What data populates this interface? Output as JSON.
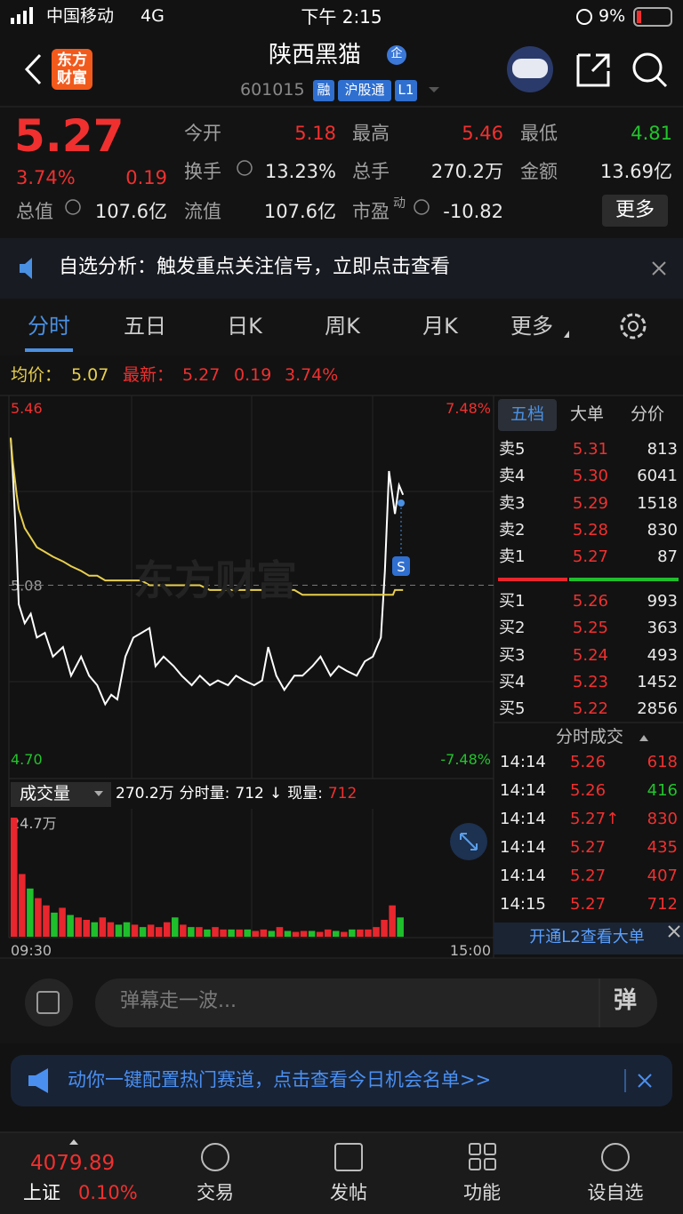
{
  "status": {
    "carrier": "中国移动",
    "network": "4G",
    "time": "下午 2:15",
    "battery": "9%"
  },
  "header": {
    "logo": "东方财富",
    "title": "陕西黑猫",
    "badge": "企",
    "code": "601015",
    "tags": [
      "融",
      "沪股通",
      "L1"
    ]
  },
  "quote": {
    "price": "5.27",
    "change_pct": "3.74%",
    "change": "0.19",
    "fields": [
      {
        "label": "今开",
        "value": "5.18"
      },
      {
        "label": "最高",
        "value": "5.46"
      },
      {
        "label": "最低",
        "value": "4.81"
      },
      {
        "label": "换手",
        "value": "13.23%"
      },
      {
        "label": "总手",
        "value": "270.2万"
      },
      {
        "label": "金额",
        "value": "13.69亿"
      },
      {
        "label": "总值",
        "value": "107.6亿"
      },
      {
        "label": "流值",
        "value": "107.6亿"
      },
      {
        "label": "市盈",
        "sup": "动",
        "value": "-10.82"
      }
    ],
    "more": "更多"
  },
  "notice": {
    "text": "自选分析：触发重点关注信号，立即点击查看"
  },
  "tabs": [
    "分时",
    "五日",
    "日K",
    "周K",
    "月K",
    "更多"
  ],
  "summary": {
    "avg_label": "均价：",
    "avg": "5.07",
    "latest_label": "最新：",
    "latest": "5.27",
    "change": "0.19",
    "pct": "3.74%"
  },
  "watermark": "东方财富",
  "chart_data": [
    {
      "type": "line",
      "xlim": [
        0,
        240
      ],
      "x": [
        0,
        1,
        3,
        4,
        7,
        10,
        13,
        17,
        21,
        26,
        30,
        35,
        39,
        43,
        47,
        50,
        53,
        57,
        61,
        65,
        69,
        72,
        76,
        81,
        85,
        90,
        94,
        99,
        103,
        108,
        112,
        116,
        121,
        125,
        128,
        132,
        136,
        141,
        145,
        150,
        154,
        159,
        163,
        167,
        172,
        176,
        180,
        184,
        186,
        188,
        190,
        191,
        193,
        195
      ],
      "series": [
        {
          "color": "#ffffff",
          "values": [
            5.39,
            5.32,
            5.15,
            5.04,
            5.0,
            5.02,
            4.97,
            4.98,
            4.93,
            4.95,
            4.89,
            4.93,
            4.89,
            4.87,
            4.83,
            4.85,
            4.84,
            4.93,
            4.97,
            4.98,
            4.99,
            4.91,
            4.93,
            4.91,
            4.89,
            4.87,
            4.89,
            4.87,
            4.88,
            4.87,
            4.89,
            4.88,
            4.87,
            4.88,
            4.95,
            4.89,
            4.86,
            4.89,
            4.89,
            4.91,
            4.93,
            4.89,
            4.91,
            4.9,
            4.89,
            4.92,
            4.93,
            4.97,
            5.11,
            5.32,
            5.26,
            5.23,
            5.29,
            5.27
          ]
        },
        {
          "color": "#e8cf4e",
          "values": [
            5.39,
            5.34,
            5.27,
            5.24,
            5.2,
            5.18,
            5.16,
            5.15,
            5.14,
            5.13,
            5.12,
            5.11,
            5.1,
            5.1,
            5.09,
            5.09,
            5.09,
            5.09,
            5.09,
            5.09,
            5.08,
            5.08,
            5.08,
            5.08,
            5.08,
            5.08,
            5.08,
            5.07,
            5.07,
            5.07,
            5.07,
            5.07,
            5.07,
            5.07,
            5.07,
            5.07,
            5.07,
            5.07,
            5.06,
            5.06,
            5.06,
            5.06,
            5.06,
            5.06,
            5.06,
            5.06,
            5.06,
            5.06,
            5.06,
            5.06,
            5.06,
            5.07,
            5.07,
            5.07
          ]
        }
      ],
      "ylim": [
        4.7,
        5.46
      ],
      "yticks": [
        5.46,
        5.08,
        {
          "value": 4.7,
          "label": "4.70"
        }
      ],
      "y2lim": [
        -7.48,
        7.48
      ],
      "y2ticks": [
        {
          "value": 7.48,
          "label": "7.48%"
        },
        {
          "value": -7.48,
          "label": "-7.48%"
        }
      ]
    },
    {
      "type": "bar",
      "xlim": [
        0,
        240
      ],
      "x": [
        0,
        4,
        8,
        12,
        16,
        20,
        24,
        28,
        32,
        36,
        40,
        44,
        48,
        52,
        56,
        60,
        64,
        68,
        72,
        76,
        80,
        84,
        88,
        92,
        96,
        100,
        104,
        108,
        112,
        116,
        120,
        124,
        128,
        132,
        136,
        140,
        144,
        148,
        152,
        156,
        160,
        164,
        168,
        172,
        176,
        180,
        184,
        188,
        192
      ],
      "values": [
        24.7,
        13,
        10,
        8,
        6.5,
        5,
        6,
        4.5,
        4,
        3.5,
        3,
        4,
        3,
        2.5,
        3,
        2.5,
        2,
        2.5,
        2,
        3,
        4,
        2.5,
        2,
        2,
        1.5,
        2,
        1.5,
        1.5,
        1.5,
        1.5,
        1.2,
        1.5,
        1.2,
        2,
        1.2,
        1,
        1.2,
        1.2,
        1,
        1.5,
        1.2,
        1,
        1.5,
        1.5,
        1.5,
        2,
        3.5,
        6.5,
        4
      ],
      "colors": [
        "#e8262d",
        "#e8262d",
        "#1fbf2c",
        "#e8262d",
        "#e8262d",
        "#1fbf2c",
        "#e8262d",
        "#1fbf2c",
        "#e8262d",
        "#e8262d",
        "#1fbf2c",
        "#e8262d",
        "#e8262d",
        "#1fbf2c",
        "#1fbf2c",
        "#e8262d",
        "#1fbf2c",
        "#e8262d",
        "#e8262d",
        "#e8262d",
        "#1fbf2c",
        "#e8262d",
        "#1fbf2c",
        "#e8262d",
        "#1fbf2c",
        "#e8262d",
        "#e8262d",
        "#1fbf2c",
        "#e8262d",
        "#1fbf2c",
        "#e8262d",
        "#e8262d",
        "#1fbf2c",
        "#e8262d",
        "#1fbf2c",
        "#e8262d",
        "#e8262d",
        "#1fbf2c",
        "#e8262d",
        "#e8262d",
        "#1fbf2c",
        "#e8262d",
        "#1fbf2c",
        "#e8262d",
        "#e8262d",
        "#e8262d",
        "#e8262d",
        "#e8262d",
        "#1fbf2c"
      ],
      "ylim": [
        0,
        24.7
      ],
      "yticks": [
        {
          "value": 24.7,
          "label": "24.7万"
        }
      ],
      "xticks": [
        {
          "value": 0,
          "label": "09:30"
        },
        {
          "value": 240,
          "label": "15:00"
        }
      ]
    }
  ],
  "volume_bar": {
    "label": "成交量",
    "total": "270.2万",
    "minute_label": "分时量:",
    "minute": "712",
    "arrow": "↓",
    "now_label": "现量:",
    "now": "712"
  },
  "book": {
    "tabs": [
      "五档",
      "大单",
      "分价"
    ],
    "asks": [
      {
        "label": "卖5",
        "price": "5.31",
        "vol": "813"
      },
      {
        "label": "卖4",
        "price": "5.30",
        "vol": "6041"
      },
      {
        "label": "卖3",
        "price": "5.29",
        "vol": "1518"
      },
      {
        "label": "卖2",
        "price": "5.28",
        "vol": "830"
      },
      {
        "label": "卖1",
        "price": "5.27",
        "vol": "87"
      }
    ],
    "bids": [
      {
        "label": "买1",
        "price": "5.26",
        "vol": "993"
      },
      {
        "label": "买2",
        "price": "5.25",
        "vol": "363"
      },
      {
        "label": "买3",
        "price": "5.24",
        "vol": "493"
      },
      {
        "label": "买4",
        "price": "5.23",
        "vol": "1452"
      },
      {
        "label": "买5",
        "price": "5.22",
        "vol": "2856"
      }
    ]
  },
  "trades": {
    "title": "分时成交",
    "rows": [
      {
        "time": "14:14",
        "price": "5.26",
        "vol": "618"
      },
      {
        "time": "14:14",
        "price": "5.26",
        "vol": "416"
      },
      {
        "time": "14:14",
        "price": "5.27↑",
        "vol": "830"
      },
      {
        "time": "14:14",
        "price": "5.27",
        "vol": "435"
      },
      {
        "time": "14:14",
        "price": "5.27",
        "vol": "407"
      },
      {
        "time": "14:15",
        "price": "5.27",
        "vol": "712"
      }
    ],
    "l2": "开通L2查看大单"
  },
  "comment": {
    "placeholder": "弹幕走一波...",
    "button": "弹"
  },
  "ad": {
    "text": "动你一键配置热门赛道，点击查看今日机会名单>>"
  },
  "bottom_nav": {
    "index": "4079.89",
    "index_name": "上证",
    "index_pct": "0.10%",
    "items": [
      "交易",
      "发帖",
      "功能",
      "设自选"
    ]
  }
}
